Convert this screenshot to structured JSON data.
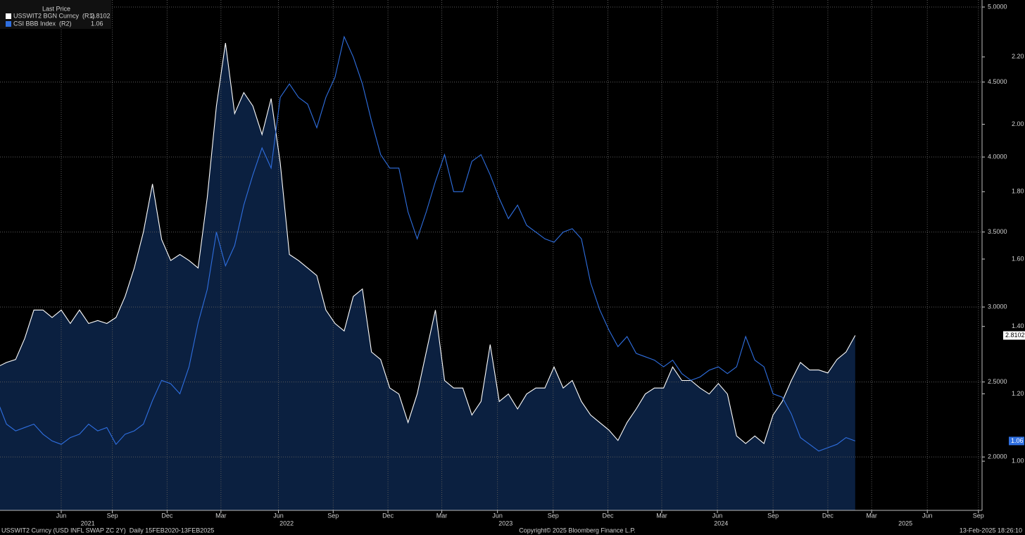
{
  "chart_data": {
    "type": "line",
    "legend_title": "Last Price",
    "footer_left": "USSWIT2 Curncy (USD INFL SWAP ZC 2Y)  Daily 15FEB2020-13FEB2025",
    "footer_center": "Copyright© 2025 Bloomberg Finance L.P.",
    "footer_right": "13-Feb-2025 18:26:10",
    "grid": true,
    "legend": "top-left",
    "fill_color": "#0b2040",
    "xlim": [
      0.29,
      107.9
    ],
    "xticks": [
      {
        "value": 7.0,
        "label": "Jun"
      },
      {
        "value": 12.6,
        "label": "Sep"
      },
      {
        "value": 18.6,
        "label": "Dec"
      },
      {
        "value": 24.5,
        "label": "Mar"
      },
      {
        "value": 30.8,
        "label": "Jun"
      },
      {
        "value": 36.8,
        "label": "Sep"
      },
      {
        "value": 42.8,
        "label": "Dec"
      },
      {
        "value": 48.7,
        "label": "Mar"
      },
      {
        "value": 54.8,
        "label": "Jun"
      },
      {
        "value": 60.9,
        "label": "Sep"
      },
      {
        "value": 66.9,
        "label": "Dec"
      },
      {
        "value": 72.8,
        "label": "Mar"
      },
      {
        "value": 78.9,
        "label": "Jun"
      },
      {
        "value": 85.0,
        "label": "Sep"
      },
      {
        "value": 91.0,
        "label": "Dec"
      },
      {
        "value": 95.8,
        "label": "Mar"
      },
      {
        "value": 101.9,
        "label": "Jun"
      },
      {
        "value": 107.5,
        "label": "Sep"
      }
    ],
    "year_labels": [
      {
        "value": 9.9,
        "label": "2021"
      },
      {
        "value": 31.7,
        "label": "2022"
      },
      {
        "value": 55.7,
        "label": "2023"
      },
      {
        "value": 79.3,
        "label": "2024"
      },
      {
        "value": 99.5,
        "label": "2025"
      }
    ],
    "ylim": [
      1.644,
      5.047
    ],
    "yticks": [
      {
        "value": 2,
        "label": "2.0000"
      },
      {
        "value": 2.5,
        "label": "2.5000"
      },
      {
        "value": 3,
        "label": "3.0000"
      },
      {
        "value": 3.5,
        "label": "3.5000"
      },
      {
        "value": 4,
        "label": "4.0000"
      },
      {
        "value": 4.5,
        "label": "4.5000"
      },
      {
        "value": 5,
        "label": "5.0000"
      }
    ],
    "y2lim": [
      0.854,
      2.369
    ],
    "y2ticks": [
      {
        "value": 1,
        "label": "1.00"
      },
      {
        "value": 1.2,
        "label": "1.20"
      },
      {
        "value": 1.4,
        "label": "1.40"
      },
      {
        "value": 1.6,
        "label": "1.60"
      },
      {
        "value": 1.8,
        "label": "1.80"
      },
      {
        "value": 2,
        "label": "2.00"
      },
      {
        "value": 2.2,
        "label": "2.20"
      }
    ],
    "series": [
      {
        "name": "USSWIT2 BGN Curncy  (R1)",
        "color": "#ffffff",
        "axis": "y",
        "values": [
          2.6,
          2.63,
          2.65,
          2.79,
          2.98,
          2.98,
          2.93,
          2.98,
          2.89,
          2.98,
          2.89,
          2.91,
          2.89,
          2.93,
          3.07,
          3.26,
          3.5,
          3.82,
          3.45,
          3.31,
          3.35,
          3.31,
          3.26,
          3.73,
          4.34,
          4.76,
          4.29,
          4.43,
          4.34,
          4.15,
          4.39,
          3.96,
          3.35,
          3.31,
          3.26,
          3.21,
          2.98,
          2.89,
          2.84,
          3.07,
          3.12,
          2.7,
          2.65,
          2.46,
          2.42,
          2.23,
          2.42,
          2.7,
          2.98,
          2.51,
          2.46,
          2.46,
          2.28,
          2.37,
          2.75,
          2.37,
          2.42,
          2.32,
          2.42,
          2.46,
          2.46,
          2.6,
          2.46,
          2.51,
          2.37,
          2.28,
          2.23,
          2.18,
          2.11,
          2.23,
          2.32,
          2.42,
          2.46,
          2.46,
          2.6,
          2.51,
          2.51,
          2.46,
          2.42,
          2.49,
          2.42,
          2.14,
          2.09,
          2.14,
          2.09,
          2.28,
          2.37,
          2.51,
          2.63,
          2.58,
          2.58,
          2.56,
          2.65,
          2.7,
          2.8102
        ]
      },
      {
        "name": "CSI BBB Index  (R2)",
        "color": "#2f6fe0",
        "axis": "y2",
        "values": [
          1.18,
          1.11,
          1.09,
          1.1,
          1.11,
          1.08,
          1.06,
          1.05,
          1.07,
          1.08,
          1.11,
          1.09,
          1.1,
          1.05,
          1.08,
          1.09,
          1.11,
          1.18,
          1.24,
          1.23,
          1.2,
          1.28,
          1.41,
          1.51,
          1.68,
          1.58,
          1.64,
          1.76,
          1.85,
          1.93,
          1.87,
          2.08,
          2.12,
          2.08,
          2.06,
          1.99,
          2.08,
          2.14,
          2.26,
          2.2,
          2.12,
          2.01,
          1.91,
          1.87,
          1.87,
          1.74,
          1.66,
          1.74,
          1.83,
          1.91,
          1.8,
          1.8,
          1.89,
          1.91,
          1.85,
          1.78,
          1.72,
          1.76,
          1.7,
          1.68,
          1.66,
          1.65,
          1.68,
          1.69,
          1.66,
          1.53,
          1.45,
          1.39,
          1.34,
          1.37,
          1.32,
          1.31,
          1.3,
          1.28,
          1.3,
          1.26,
          1.24,
          1.25,
          1.27,
          1.28,
          1.26,
          1.28,
          1.37,
          1.3,
          1.28,
          1.2,
          1.19,
          1.14,
          1.07,
          1.05,
          1.03,
          1.04,
          1.05,
          1.07,
          1.06
        ]
      }
    ]
  }
}
